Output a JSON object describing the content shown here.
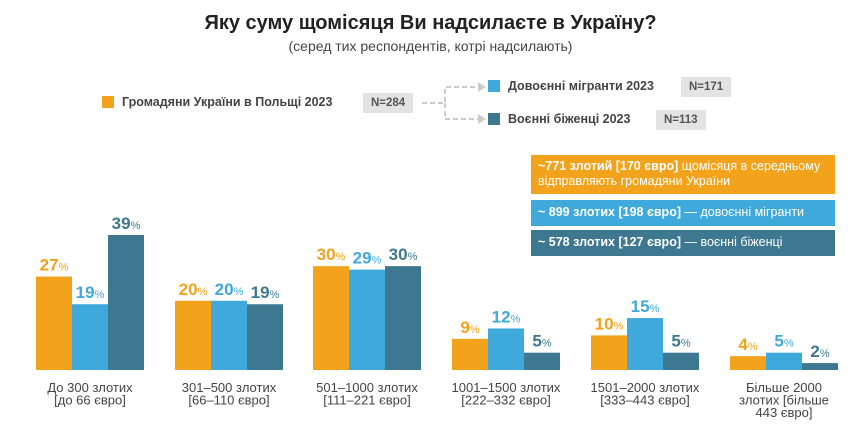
{
  "title": "Яку суму щомісяця Ви надсилаєте в Україну?",
  "subtitle": "(серед тих респондентів, котрі надсилають)",
  "legend": {
    "main": {
      "label": "Громадяни України в Польщі 2023",
      "n": "N=284"
    },
    "sub1": {
      "label": "Довоєнні мігранти 2023",
      "n": "N=171"
    },
    "sub2": {
      "label": "Воєнні біженці 2023",
      "n": "N=113"
    }
  },
  "colors": {
    "citizens": "#f2a31b",
    "pre_war": "#3fa9db",
    "refugees": "#3d7890",
    "arrow": "#cccccc"
  },
  "notes": {
    "note1_bold": "~771 злотий [170 євро]",
    "note1_rest": " щомісяця в середньому відправляють громадяни України",
    "note2_bold": "~ 899 злотих [198 євро]",
    "note2_rest": " — довоєнні мігранти",
    "note3_bold": "~ 578 злотих [127 євро]",
    "note3_rest": " — воєнні біженці"
  },
  "chart_data": {
    "type": "bar",
    "categories": [
      [
        "До 300 злотих",
        "[до 66 євро]"
      ],
      [
        "301–500 злотих",
        "[66–110 євро]"
      ],
      [
        "501–1000 злотих",
        "[111–221 євро]"
      ],
      [
        "1001–1500 злотих",
        "[222–332 євро]"
      ],
      [
        "1501–2000 злотих",
        "[333–443 євро]"
      ],
      [
        "Більше 2000",
        "злотих [більше",
        "443 євро]"
      ]
    ],
    "series": [
      {
        "name": "Громадяни України в Польщі 2023",
        "values": [
          27,
          20,
          30,
          9,
          10,
          4
        ]
      },
      {
        "name": "Довоєнні мігранти 2023",
        "values": [
          19,
          20,
          29,
          12,
          15,
          5
        ]
      },
      {
        "name": "Воєнні біженці 2023",
        "values": [
          39,
          19,
          30,
          5,
          5,
          2
        ]
      }
    ],
    "unit": "%",
    "ylim": [
      0,
      39
    ]
  }
}
